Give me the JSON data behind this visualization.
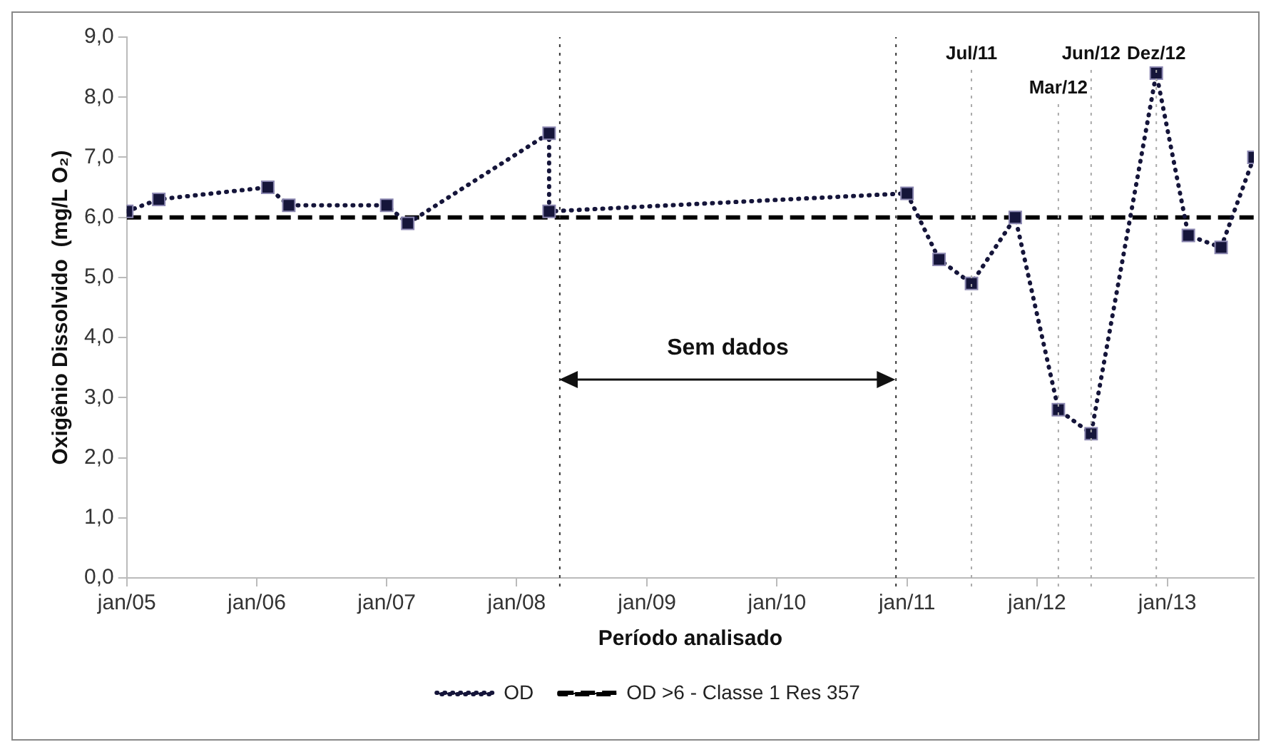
{
  "chart_data": {
    "type": "line",
    "xlabel": "Período analisado",
    "ylabel": "Oxigênio Dissolvido  (mg/L O₂)",
    "xlim": [
      "2005-01",
      "2013-09"
    ],
    "xticks": [
      {
        "value": "2005-01",
        "label": "jan/05"
      },
      {
        "value": "2006-01",
        "label": "jan/06"
      },
      {
        "value": "2007-01",
        "label": "jan/07"
      },
      {
        "value": "2008-01",
        "label": "jan/08"
      },
      {
        "value": "2009-01",
        "label": "jan/09"
      },
      {
        "value": "2010-01",
        "label": "jan/10"
      },
      {
        "value": "2011-01",
        "label": "jan/11"
      },
      {
        "value": "2012-01",
        "label": "jan/12"
      },
      {
        "value": "2013-01",
        "label": "jan/13"
      }
    ],
    "ylim": [
      0,
      9
    ],
    "yticks": [
      {
        "value": 0,
        "label": "0,0"
      },
      {
        "value": 1,
        "label": "1,0"
      },
      {
        "value": 2,
        "label": "2,0"
      },
      {
        "value": 3,
        "label": "3,0"
      },
      {
        "value": 4,
        "label": "4,0"
      },
      {
        "value": 5,
        "label": "5,0"
      },
      {
        "value": 6,
        "label": "6,0"
      },
      {
        "value": 7,
        "label": "7,0"
      },
      {
        "value": 8,
        "label": "8,0"
      },
      {
        "value": 9,
        "label": "9,0"
      }
    ],
    "grid": false,
    "legend": "bottom",
    "series": [
      {
        "name": "OD",
        "color": "#15153a",
        "marker": "square",
        "line_style": "dotted",
        "x": [
          "2005-01",
          "2005-04",
          "2006-02",
          "2006-04",
          "2007-01",
          "2007-03",
          "2008-04",
          "2008-04",
          "2011-01",
          "2011-04",
          "2011-07",
          "2011-11",
          "2012-03",
          "2012-06",
          "2012-12",
          "2013-03",
          "2013-06",
          "2013-09"
        ],
        "values": [
          6.1,
          6.3,
          6.5,
          6.2,
          6.2,
          5.9,
          7.4,
          6.1,
          6.4,
          5.3,
          4.9,
          6.0,
          2.8,
          2.4,
          8.4,
          5.7,
          5.5,
          7.0
        ]
      },
      {
        "name": "OD >6 - Classe 1 Res 357",
        "color": "#000000",
        "marker": "none",
        "line_style": "dashed",
        "x": [
          "2005-01",
          "2013-09"
        ],
        "values": [
          6,
          6
        ]
      }
    ],
    "ref_lines": [
      {
        "axis": "x",
        "value": "2008-05",
        "label": null,
        "color": "#333333",
        "line_style": "dotted"
      },
      {
        "axis": "x",
        "value": "2010-12",
        "label": null,
        "color": "#333333",
        "line_style": "dotted"
      },
      {
        "axis": "x",
        "value": "2011-07",
        "label": "Jul/11",
        "color": "#aaaaaa",
        "line_style": "dotted"
      },
      {
        "axis": "x",
        "value": "2012-03",
        "label": "Mar/12",
        "color": "#aaaaaa",
        "line_style": "dotted"
      },
      {
        "axis": "x",
        "value": "2012-06",
        "label": "Jun/12",
        "color": "#aaaaaa",
        "line_style": "dotted"
      },
      {
        "axis": "x",
        "value": "2012-12",
        "label": "Dez/12",
        "color": "#aaaaaa",
        "line_style": "dotted"
      }
    ],
    "annotations": [
      "Sem dados"
    ]
  }
}
